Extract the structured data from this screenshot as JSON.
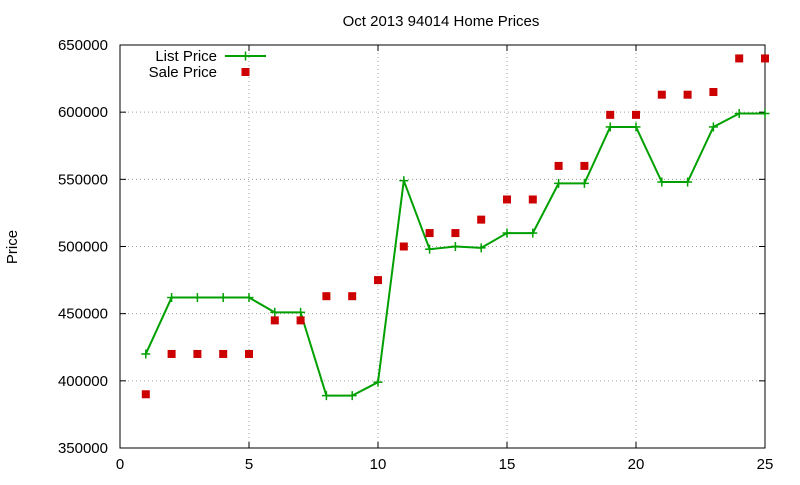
{
  "chart_data": {
    "type": "line",
    "title": "Oct 2013 94014 Home Prices",
    "xlabel": "",
    "ylabel": "Price",
    "xlim": [
      0,
      25
    ],
    "ylim": [
      350000,
      650000
    ],
    "xticks": [
      0,
      5,
      10,
      15,
      20,
      25
    ],
    "yticks": [
      350000,
      400000,
      450000,
      500000,
      550000,
      600000,
      650000
    ],
    "grid": true,
    "legend_position": "top-left",
    "series": [
      {
        "name": "List Price",
        "style": "line-points",
        "marker": "plus",
        "color": "#00a000",
        "x": [
          1,
          2,
          3,
          4,
          5,
          6,
          7,
          8,
          9,
          10,
          11,
          12,
          13,
          14,
          15,
          16,
          17,
          18,
          19,
          20,
          21,
          22,
          23,
          24,
          25
        ],
        "y": [
          420000,
          462000,
          462000,
          462000,
          462000,
          451000,
          451000,
          389000,
          389000,
          399000,
          549000,
          498000,
          500000,
          499000,
          510000,
          510000,
          547000,
          547000,
          589000,
          589000,
          548000,
          548000,
          589000,
          599000,
          599000
        ]
      },
      {
        "name": "Sale Price",
        "style": "points",
        "marker": "square",
        "color": "#cc0000",
        "x": [
          1,
          2,
          3,
          4,
          5,
          6,
          7,
          8,
          9,
          10,
          11,
          12,
          13,
          14,
          15,
          16,
          17,
          18,
          19,
          20,
          21,
          22,
          23,
          24,
          25
        ],
        "y": [
          390000,
          420000,
          420000,
          420000,
          420000,
          445000,
          445000,
          463000,
          463000,
          475000,
          500000,
          510000,
          510000,
          520000,
          535000,
          535000,
          560000,
          560000,
          598000,
          598000,
          613000,
          613000,
          615000,
          640000,
          640000
        ]
      }
    ]
  }
}
